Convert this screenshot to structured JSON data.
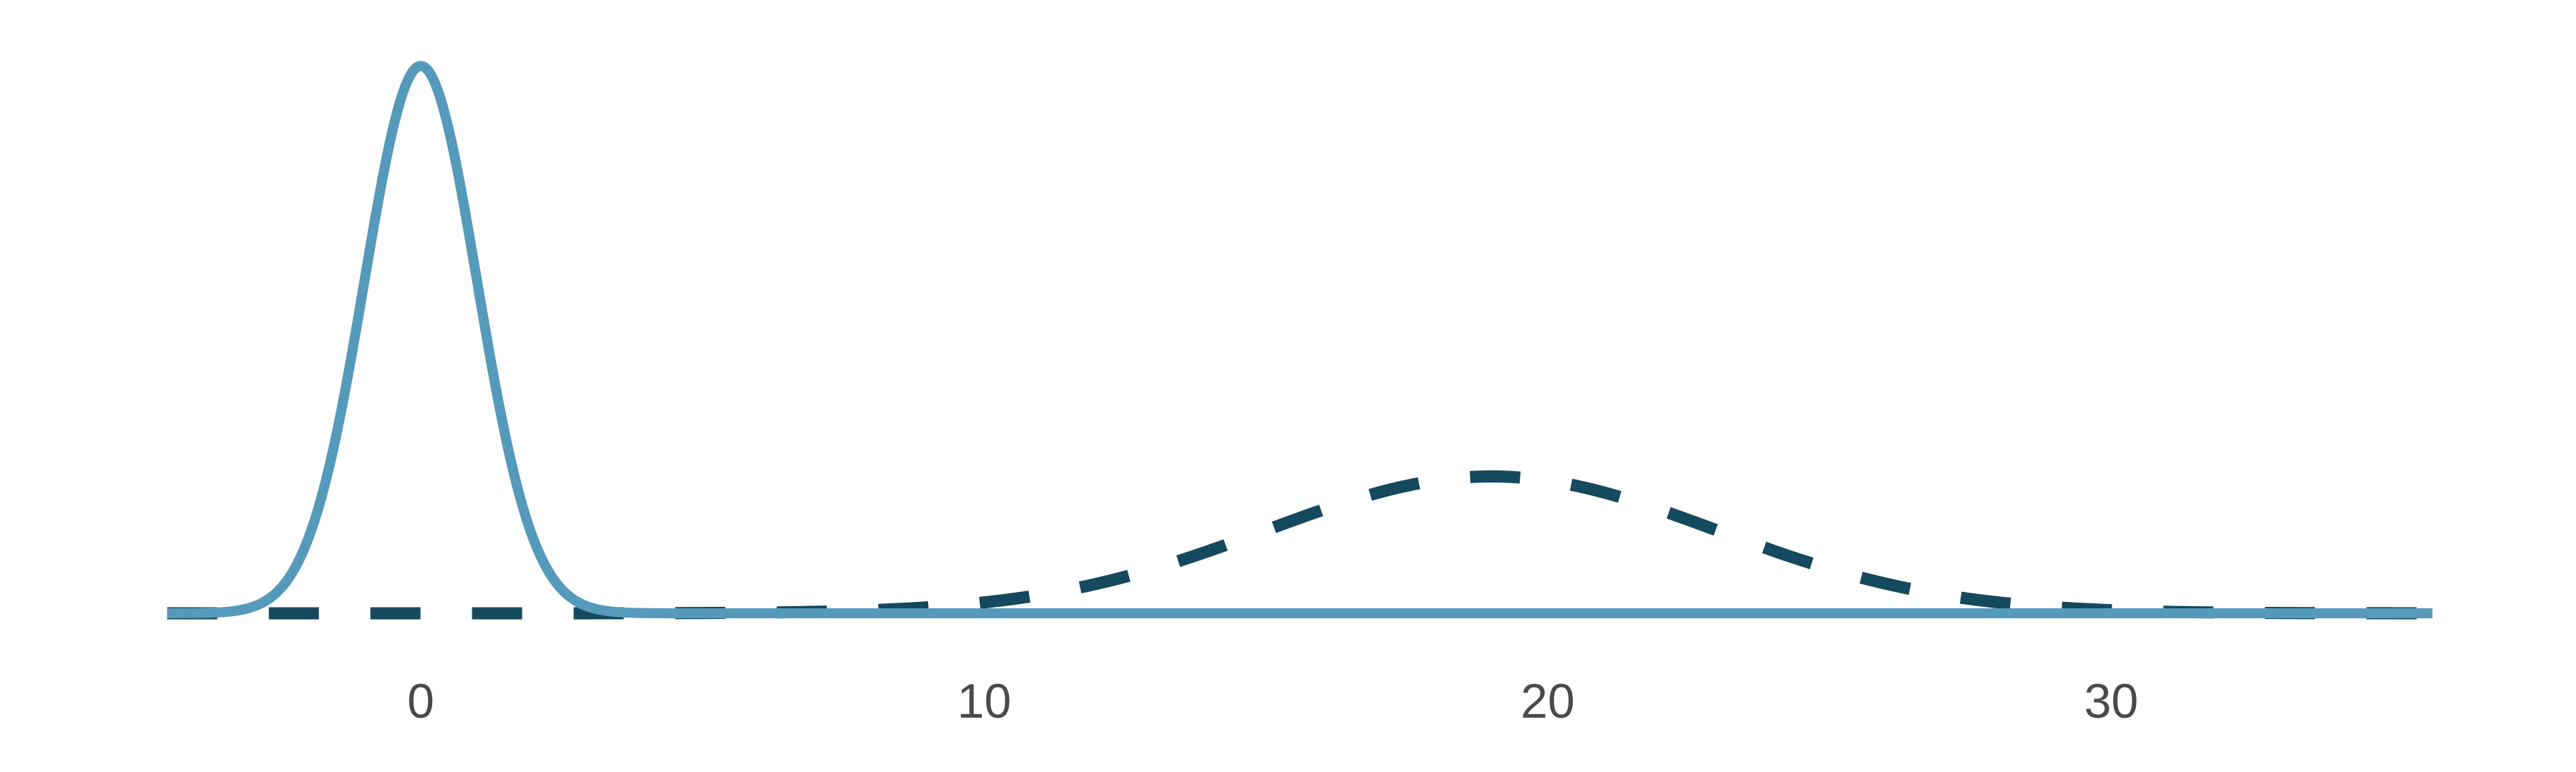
{
  "chart_data": {
    "type": "line",
    "title": "",
    "xlabel": "",
    "ylabel": "",
    "xlim": [
      -4.5,
      35.7
    ],
    "ylim": [
      0,
      0.4
    ],
    "grid": false,
    "legend": "none",
    "x_ticks": [
      0,
      10,
      20,
      30
    ],
    "x_tick_labels": [
      "0",
      "10",
      "20",
      "30"
    ],
    "series": [
      {
        "style": "solid",
        "color": "#5599bb",
        "distribution": {
          "kind": "normal",
          "mean": 0,
          "sd": 1
        },
        "x_range": [
          -4.5,
          35.7
        ],
        "peak_y": 0.399
      },
      {
        "style": "dashed",
        "color": "#15495e",
        "distribution": {
          "kind": "normal",
          "mean": 19,
          "sd": 4
        },
        "x_range": [
          -4.5,
          35.7
        ],
        "peak_y": 0.0997
      }
    ]
  }
}
